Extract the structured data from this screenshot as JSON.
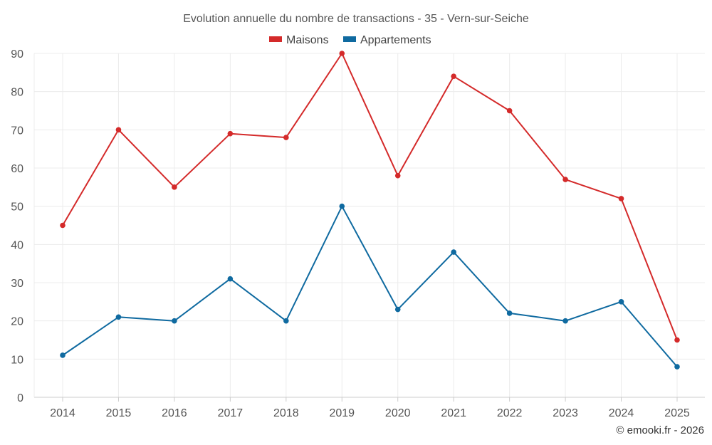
{
  "chart_data": {
    "type": "line",
    "title": "Evolution annuelle du nombre de transactions - 35 - Vern-sur-Seiche",
    "categories": [
      "2014",
      "2015",
      "2016",
      "2017",
      "2018",
      "2019",
      "2020",
      "2021",
      "2022",
      "2023",
      "2024",
      "2025"
    ],
    "series": [
      {
        "name": "Maisons",
        "color": "#d42a2a",
        "values": [
          45,
          70,
          55,
          69,
          68,
          90,
          58,
          84,
          75,
          57,
          52,
          15
        ]
      },
      {
        "name": "Appartements",
        "color": "#0f6aa0",
        "values": [
          11,
          21,
          20,
          31,
          20,
          50,
          23,
          38,
          22,
          20,
          25,
          8
        ]
      }
    ],
    "ylim": [
      0,
      90
    ],
    "yticks": [
      0,
      10,
      20,
      30,
      40,
      50,
      60,
      70,
      80,
      90
    ],
    "xlabel": "",
    "ylabel": "",
    "grid": true,
    "legend": "top-center"
  },
  "credit": "© emooki.fr - 2026"
}
